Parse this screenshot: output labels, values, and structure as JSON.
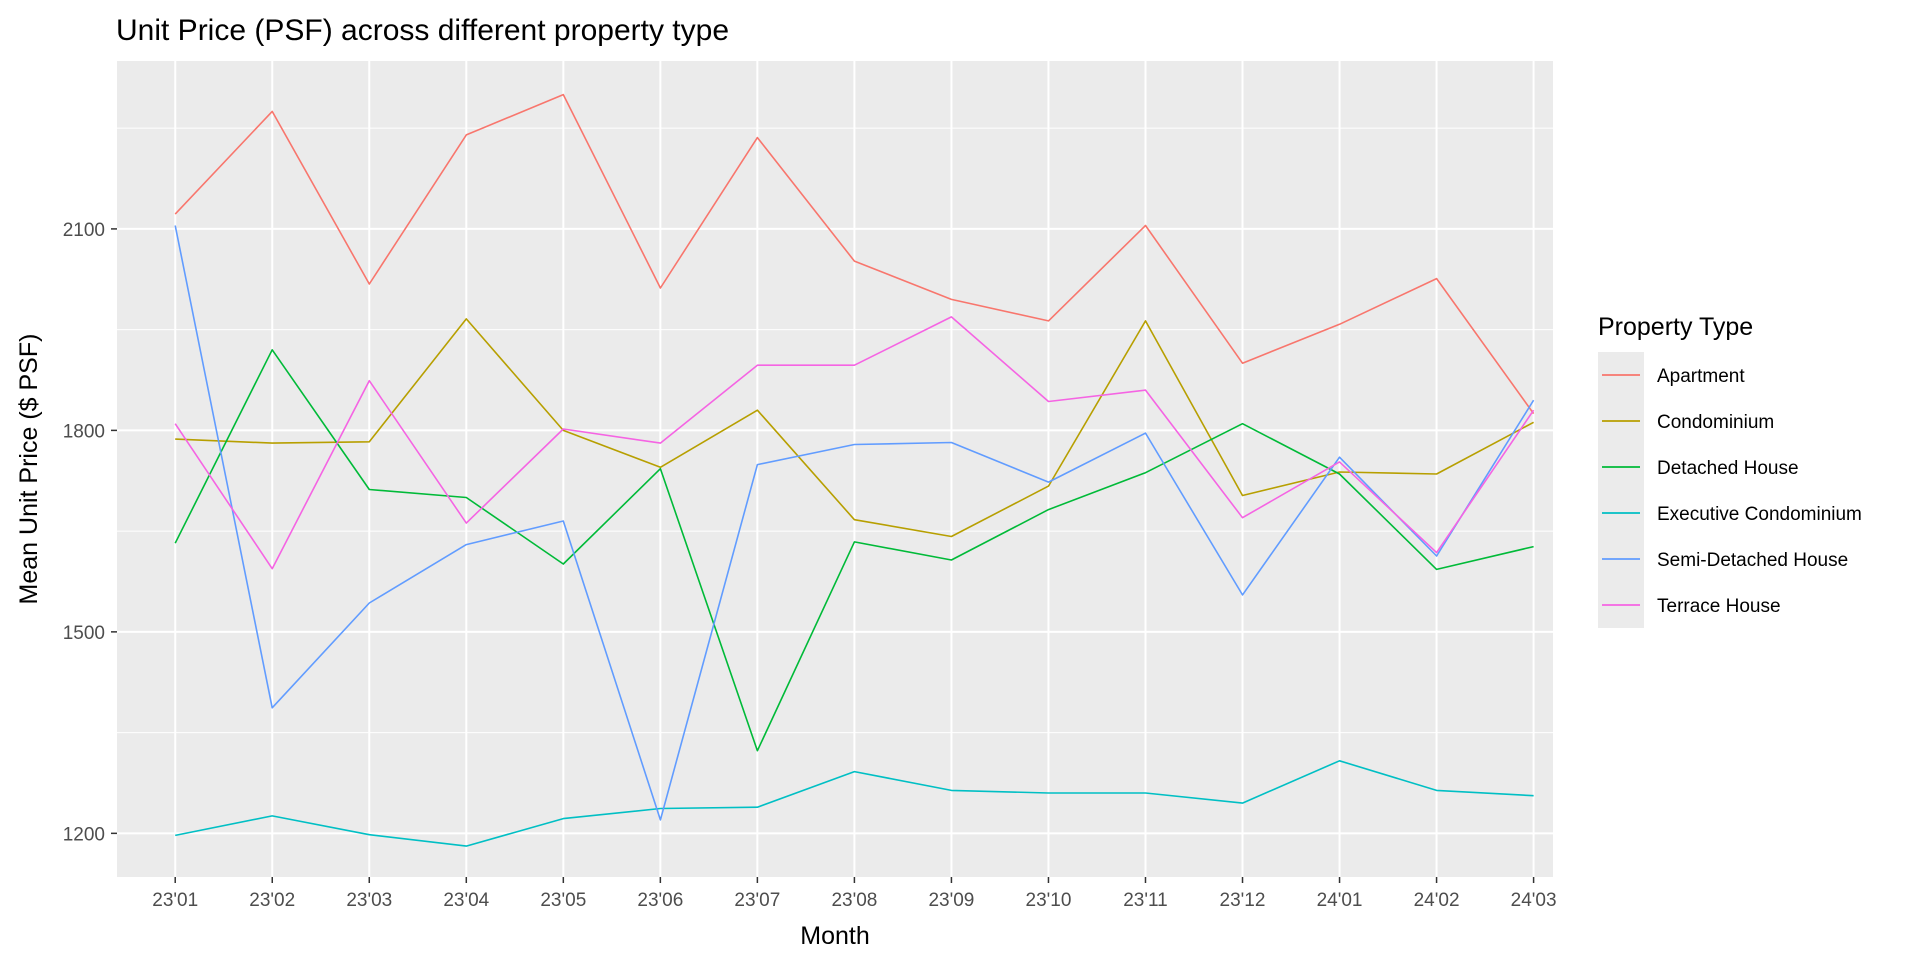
{
  "chart_data": {
    "type": "line",
    "title": "Unit Price (PSF) across different property type",
    "xlabel": "Month",
    "ylabel": "Mean Unit Price ($ PSF)",
    "categories": [
      "23'01",
      "23'02",
      "23'03",
      "23'04",
      "23'05",
      "23'06",
      "23'07",
      "23'08",
      "23'09",
      "23'10",
      "23'11",
      "23'12",
      "24'01",
      "24'02",
      "24'03"
    ],
    "ylim": [
      1135,
      2350
    ],
    "yticks": [
      1200,
      1500,
      1800,
      2100
    ],
    "grid": true,
    "legend": {
      "title": "Property Type",
      "position": "right"
    },
    "series": [
      {
        "name": "Apartment",
        "color": "#F8766D",
        "values": [
          2122,
          2275,
          2018,
          2240,
          2300,
          2012,
          2236,
          2052,
          1995,
          1963,
          2105,
          1900,
          1958,
          2026,
          1825
        ]
      },
      {
        "name": "Condominium",
        "color": "#B79F00",
        "values": [
          1787,
          1781,
          1783,
          1966,
          1800,
          1745,
          1830,
          1667,
          1642,
          1717,
          1963,
          1703,
          1738,
          1735,
          1812
        ]
      },
      {
        "name": "Detached House",
        "color": "#00BA38",
        "values": [
          1632,
          1920,
          1712,
          1700,
          1601,
          1743,
          1323,
          1634,
          1607,
          1682,
          1737,
          1810,
          1735,
          1593,
          1627
        ]
      },
      {
        "name": "Executive Condominium",
        "color": "#00BFC4",
        "values": [
          1197,
          1226,
          1198,
          1181,
          1222,
          1237,
          1239,
          1292,
          1264,
          1260,
          1260,
          1245,
          1308,
          1264,
          1256
        ]
      },
      {
        "name": "Semi-Detached House",
        "color": "#619CFF",
        "values": [
          2105,
          1387,
          1543,
          1630,
          1665,
          1220,
          1749,
          1779,
          1782,
          1723,
          1796,
          1555,
          1760,
          1613,
          1845
        ]
      },
      {
        "name": "Terrace House",
        "color": "#F564E3",
        "values": [
          1810,
          1594,
          1874,
          1662,
          1802,
          1781,
          1897,
          1897,
          1969,
          1843,
          1860,
          1670,
          1753,
          1618,
          1830
        ]
      }
    ]
  }
}
